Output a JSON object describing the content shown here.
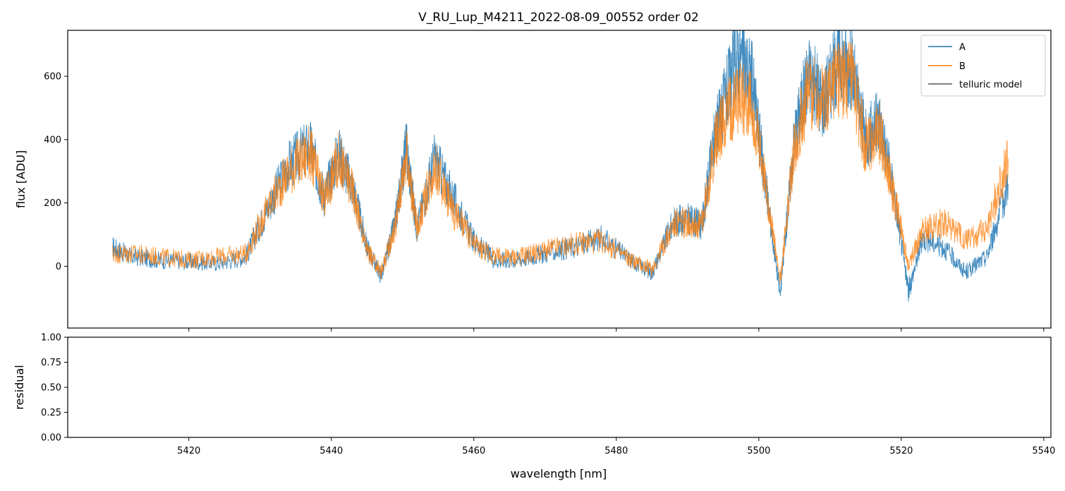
{
  "chart_data": [
    {
      "panel": "spectrum",
      "type": "line",
      "title": "V_RU_Lup_M4211_2022-08-09_00552  order 02",
      "xlabel": "",
      "ylabel": "flux [ADU]",
      "xlim": [
        5403,
        5541
      ],
      "ylim": [
        -195,
        745
      ],
      "yticks": [
        0,
        200,
        400,
        600
      ],
      "yticklabels": [
        "0",
        "200",
        "400",
        "600"
      ],
      "xticks": [
        5420,
        5440,
        5460,
        5480,
        5500,
        5520,
        5540
      ],
      "xticklabels_visible": false,
      "legend": {
        "placement": "top-right",
        "entries": [
          "A",
          "B",
          "telluric model"
        ]
      },
      "series": [
        {
          "name": "A",
          "color": "#1f77b4",
          "x": [
            5409.3,
            5412,
            5416,
            5420,
            5424,
            5428,
            5431,
            5434,
            5437,
            5439,
            5441,
            5443,
            5445,
            5447,
            5449,
            5450.5,
            5452,
            5454.5,
            5457,
            5460,
            5463,
            5466,
            5470,
            5474,
            5478,
            5482,
            5485,
            5488,
            5490,
            5492,
            5494,
            5495,
            5497,
            5499,
            5501,
            5503,
            5505,
            5507,
            5509,
            5511,
            5513,
            5515,
            5517,
            5519,
            5521,
            5523,
            5526,
            5529,
            5532,
            5535
          ],
          "values": [
            60,
            30,
            20,
            15,
            10,
            30,
            180,
            320,
            380,
            220,
            360,
            250,
            60,
            -30,
            140,
            380,
            120,
            340,
            220,
            80,
            20,
            20,
            40,
            60,
            90,
            20,
            -20,
            140,
            150,
            130,
            440,
            500,
            670,
            600,
            250,
            -90,
            410,
            610,
            520,
            650,
            630,
            400,
            460,
            230,
            -80,
            90,
            60,
            -20,
            30,
            260
          ]
        },
        {
          "name": "B",
          "color": "#ff7f0e",
          "x": [
            5409.3,
            5412,
            5416,
            5420,
            5424,
            5428,
            5431,
            5434,
            5437,
            5439,
            5441,
            5443,
            5445,
            5447,
            5449,
            5450.5,
            5452,
            5454.5,
            5457,
            5460,
            5463,
            5466,
            5470,
            5474,
            5478,
            5482,
            5485,
            5488,
            5490,
            5492,
            5494,
            5495,
            5497,
            5499,
            5501,
            5503,
            5505,
            5507,
            5509,
            5511,
            5513,
            5515,
            5517,
            5519,
            5521,
            5523,
            5526,
            5529,
            5532,
            5535
          ],
          "values": [
            40,
            40,
            30,
            20,
            30,
            40,
            180,
            300,
            360,
            210,
            340,
            240,
            50,
            -20,
            130,
            360,
            120,
            320,
            180,
            70,
            30,
            30,
            50,
            70,
            80,
            20,
            -10,
            130,
            140,
            130,
            400,
            460,
            540,
            500,
            250,
            -50,
            380,
            560,
            520,
            600,
            580,
            380,
            420,
            220,
            0,
            120,
            140,
            80,
            120,
            340
          ]
        },
        {
          "name": "telluric model",
          "color": "#555555",
          "x": [],
          "values": []
        }
      ]
    },
    {
      "panel": "residual",
      "type": "line",
      "title": "",
      "xlabel": "wavelength [nm]",
      "ylabel": "residual",
      "xlim": [
        5403,
        5541
      ],
      "ylim": [
        0,
        1
      ],
      "yticks": [
        0,
        0.25,
        0.5,
        0.75,
        1.0
      ],
      "yticklabels": [
        "0.00",
        "0.25",
        "0.50",
        "0.75",
        "1.00"
      ],
      "xticks": [
        5420,
        5440,
        5460,
        5480,
        5500,
        5520,
        5540
      ],
      "xticklabels": [
        "5420",
        "5440",
        "5460",
        "5480",
        "5500",
        "5520",
        "5540"
      ],
      "series": []
    }
  ]
}
